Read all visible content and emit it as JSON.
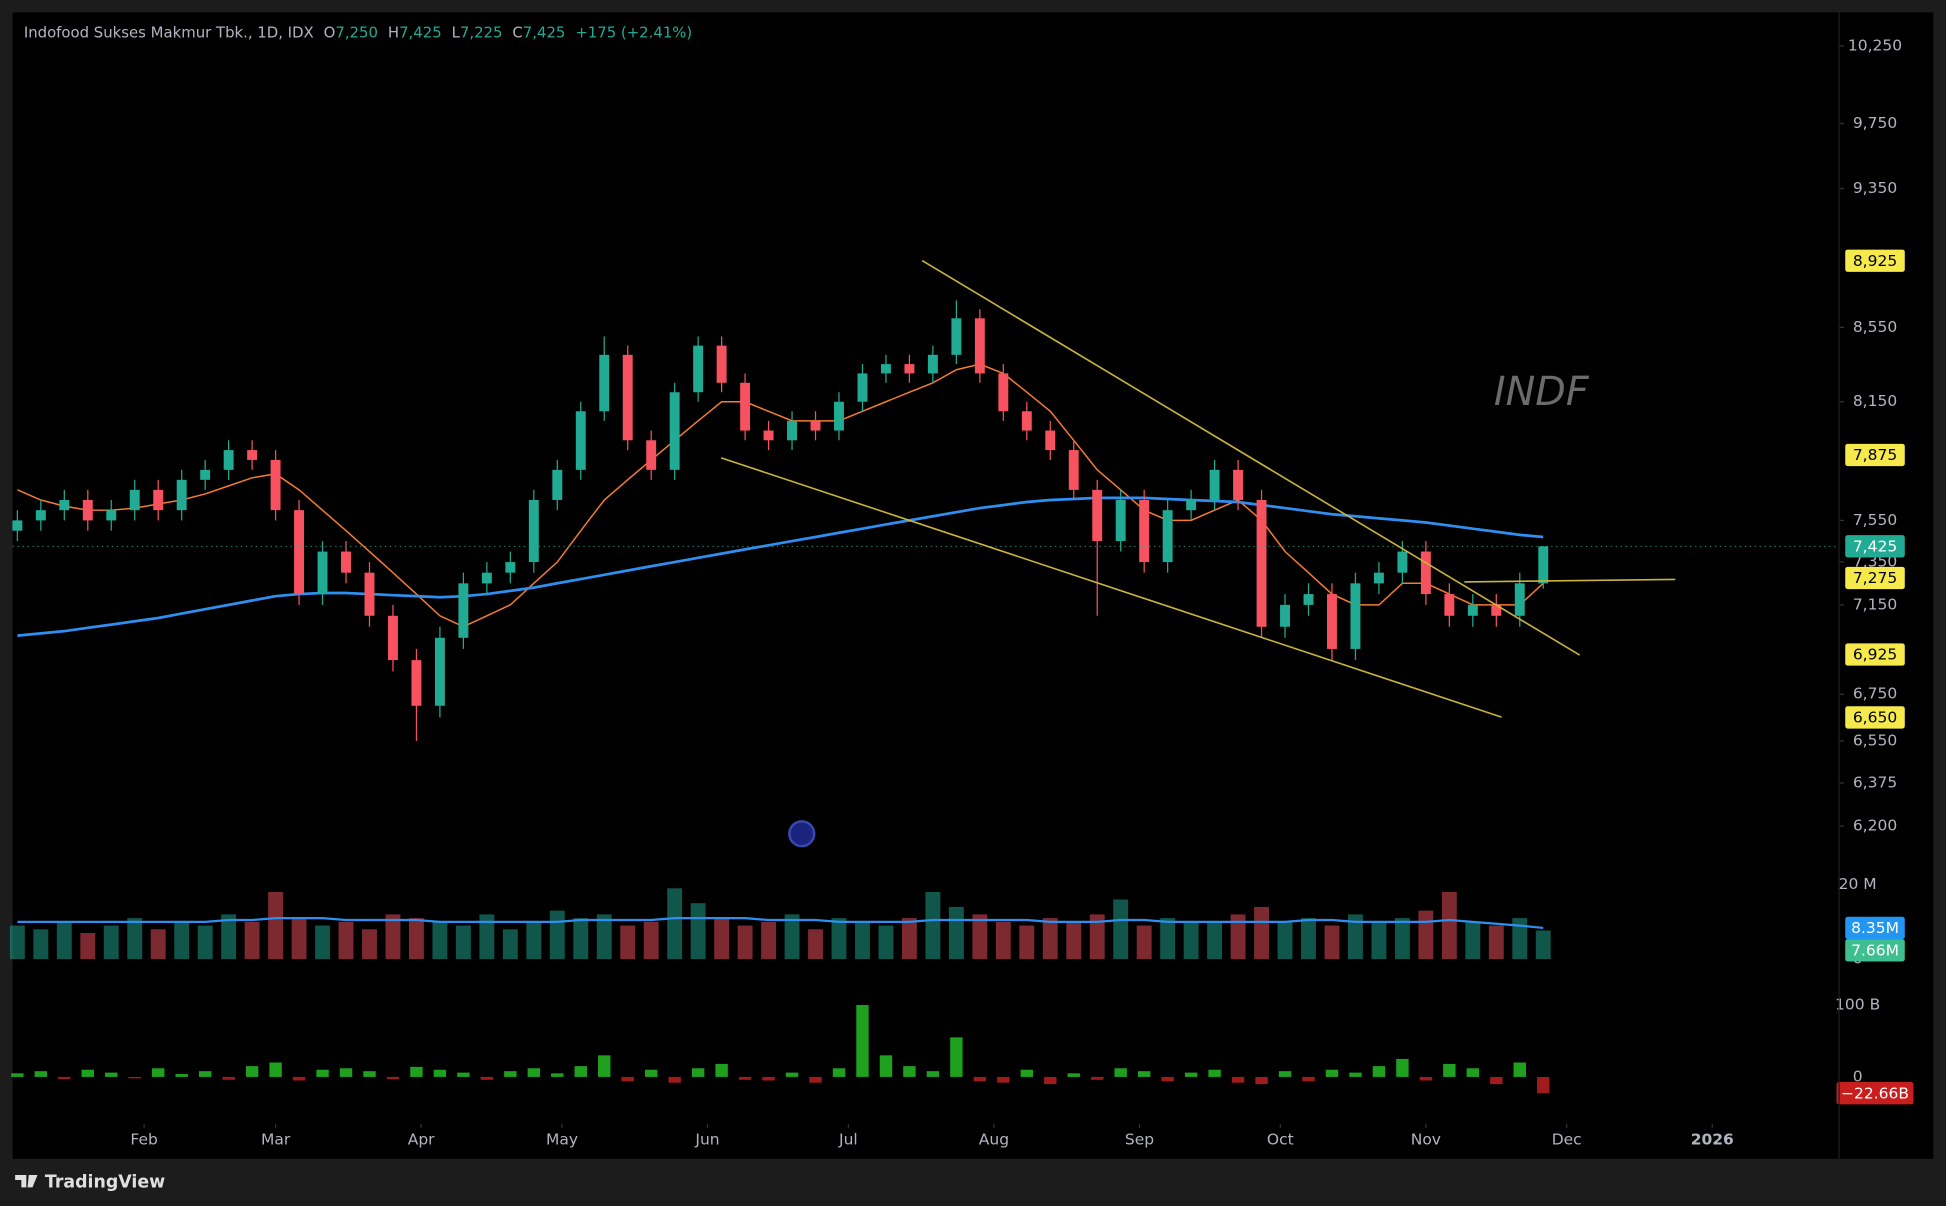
{
  "chart_data": {
    "type": "candlestick",
    "title": "Indofood Sukses Makmur Tbk., 1D, IDX",
    "header": [
      {
        "key": "O",
        "value": "7,250"
      },
      {
        "key": "H",
        "value": "7,425"
      },
      {
        "key": "L",
        "value": "7,225"
      },
      {
        "key": "C",
        "value": "7,425"
      }
    ],
    "change": "+175 (+2.41%)",
    "watermark": "INDF",
    "up_color": "#22ab94",
    "down_color": "#f7525f",
    "x": [
      5,
      10,
      15,
      20,
      25,
      30,
      35,
      40,
      45,
      50,
      55,
      60,
      65,
      70,
      75,
      80,
      85,
      90,
      95,
      100,
      105,
      110,
      115,
      120,
      125,
      130,
      135,
      140,
      145,
      150,
      155,
      160,
      165,
      170,
      175,
      180,
      185,
      190,
      195,
      200,
      205,
      210,
      215,
      220,
      225,
      230,
      235,
      240,
      245,
      250,
      255,
      260,
      265,
      270,
      275,
      280,
      285,
      290,
      295,
      300,
      305,
      310,
      315,
      320,
      325,
      330
    ],
    "open": [
      7500,
      7550,
      7600,
      7650,
      7550,
      7600,
      7700,
      7600,
      7750,
      7800,
      7900,
      7850,
      7600,
      7200,
      7400,
      7300,
      7100,
      6900,
      6700,
      7000,
      7250,
      7300,
      7350,
      7650,
      7800,
      8100,
      8400,
      7950,
      7800,
      8200,
      8450,
      8250,
      8000,
      7950,
      8050,
      8000,
      8150,
      8300,
      8350,
      8300,
      8400,
      8600,
      8300,
      8100,
      8000,
      7900,
      7700,
      7450,
      7650,
      7350,
      7600,
      7650,
      7800,
      7650,
      7050,
      7150,
      7200,
      6950,
      7250,
      7300,
      7400,
      7200,
      7100,
      7150,
      7100,
      7250
    ],
    "high": [
      7600,
      7650,
      7700,
      7700,
      7650,
      7750,
      7750,
      7800,
      7850,
      7950,
      7950,
      7900,
      7650,
      7450,
      7450,
      7350,
      7150,
      6950,
      7050,
      7300,
      7350,
      7400,
      7700,
      7850,
      8150,
      8500,
      8450,
      8000,
      8250,
      8500,
      8500,
      8300,
      8050,
      8100,
      8100,
      8200,
      8350,
      8400,
      8400,
      8450,
      8700,
      8650,
      8350,
      8150,
      8050,
      7950,
      7750,
      7700,
      7700,
      7650,
      7700,
      7850,
      7850,
      7700,
      7200,
      7250,
      7250,
      7300,
      7350,
      7450,
      7450,
      7250,
      7200,
      7200,
      7300,
      7425
    ],
    "low": [
      7450,
      7500,
      7550,
      7500,
      7500,
      7550,
      7550,
      7550,
      7700,
      7750,
      7800,
      7550,
      7150,
      7150,
      7250,
      7050,
      6850,
      6550,
      6650,
      6950,
      7200,
      7250,
      7300,
      7600,
      7750,
      8050,
      7900,
      7750,
      7750,
      8150,
      8200,
      7950,
      7900,
      7900,
      7950,
      7950,
      8100,
      8250,
      8250,
      8250,
      8350,
      8250,
      8050,
      7950,
      7850,
      7650,
      7100,
      7400,
      7300,
      7300,
      7550,
      7600,
      7600,
      7000,
      7000,
      7100,
      6900,
      6900,
      7200,
      7250,
      7150,
      7050,
      7050,
      7050,
      7050,
      7225
    ],
    "close": [
      7550,
      7600,
      7650,
      7550,
      7600,
      7700,
      7600,
      7750,
      7800,
      7900,
      7850,
      7600,
      7200,
      7400,
      7300,
      7100,
      6900,
      6700,
      7000,
      7250,
      7300,
      7350,
      7650,
      7800,
      8100,
      8400,
      7950,
      7800,
      8200,
      8450,
      8250,
      8000,
      7950,
      8050,
      8000,
      8150,
      8300,
      8350,
      8300,
      8400,
      8600,
      8300,
      8100,
      8000,
      7900,
      7700,
      7450,
      7650,
      7350,
      7600,
      7650,
      7800,
      7650,
      7050,
      7150,
      7200,
      6950,
      7250,
      7300,
      7400,
      7200,
      7100,
      7150,
      7100,
      7250,
      7425
    ],
    "overlays": [
      {
        "color": "#f57c30",
        "values": [
          7700,
          7650,
          7620,
          7600,
          7600,
          7610,
          7630,
          7650,
          7680,
          7720,
          7760,
          7780,
          7700,
          7600,
          7500,
          7400,
          7300,
          7200,
          7100,
          7050,
          7100,
          7150,
          7250,
          7350,
          7500,
          7650,
          7750,
          7850,
          7950,
          8050,
          8150,
          8150,
          8100,
          8050,
          8050,
          8050,
          8100,
          8150,
          8200,
          8250,
          8320,
          8350,
          8300,
          8200,
          8100,
          7950,
          7800,
          7700,
          7600,
          7550,
          7550,
          7600,
          7650,
          7550,
          7400,
          7300,
          7200,
          7150,
          7150,
          7250,
          7250,
          7200,
          7150,
          7150,
          7150,
          7250
        ]
      },
      {
        "color": "#2f8ff0",
        "values": [
          7010,
          7020,
          7030,
          7045,
          7060,
          7075,
          7090,
          7110,
          7130,
          7150,
          7170,
          7190,
          7200,
          7205,
          7205,
          7200,
          7195,
          7190,
          7185,
          7190,
          7200,
          7215,
          7230,
          7250,
          7270,
          7290,
          7310,
          7330,
          7350,
          7370,
          7390,
          7410,
          7430,
          7450,
          7470,
          7490,
          7510,
          7530,
          7550,
          7570,
          7590,
          7610,
          7625,
          7640,
          7650,
          7655,
          7660,
          7660,
          7660,
          7655,
          7650,
          7645,
          7640,
          7625,
          7610,
          7595,
          7580,
          7570,
          7560,
          7550,
          7540,
          7525,
          7510,
          7495,
          7480,
          7470
        ]
      }
    ],
    "ylim": [
      6033,
      10457
    ],
    "log_scale": true,
    "yticks": [
      {
        "value": 10250,
        "label": "10,250"
      },
      {
        "value": 9750,
        "label": "9,750"
      },
      {
        "value": 9350,
        "label": "9,350"
      },
      {
        "value": 8550,
        "label": "8,550"
      },
      {
        "value": 8150,
        "label": "8,150"
      },
      {
        "value": 7550,
        "label": "7,550"
      },
      {
        "value": 7350,
        "label": "7,350"
      },
      {
        "value": 7150,
        "label": "7,150"
      },
      {
        "value": 6750,
        "label": "6,750"
      },
      {
        "value": 6550,
        "label": "6,550"
      },
      {
        "value": 6375,
        "label": "6,375"
      },
      {
        "value": 6200,
        "label": "6,200"
      }
    ],
    "price_badges": [
      {
        "value": 8925,
        "label": "8,925",
        "color": "#f5e94c"
      },
      {
        "value": 7875,
        "label": "7,875",
        "color": "#f5e94c"
      },
      {
        "value": 7425,
        "label": "7,425",
        "color": "#22ab94"
      },
      {
        "value": 7275,
        "label": "7,275",
        "color": "#f5e94c"
      },
      {
        "value": 6925,
        "label": "6,925",
        "color": "#f5e94c"
      },
      {
        "value": 6650,
        "label": "6,650",
        "color": "#f5e94c"
      }
    ],
    "xlim": [
      4,
      393
    ],
    "xticks": [
      {
        "value": 32,
        "label": "Feb"
      },
      {
        "value": 60,
        "label": "Mar"
      },
      {
        "value": 91,
        "label": "Apr"
      },
      {
        "value": 121,
        "label": "May"
      },
      {
        "value": 152,
        "label": "Jun"
      },
      {
        "value": 182,
        "label": "Jul"
      },
      {
        "value": 213,
        "label": "Aug"
      },
      {
        "value": 244,
        "label": "Sep"
      },
      {
        "value": 274,
        "label": "Oct"
      },
      {
        "value": 305,
        "label": "Nov"
      },
      {
        "value": 335,
        "label": "Dec"
      },
      {
        "value": 366,
        "label": "2026"
      }
    ],
    "volume": {
      "values": [
        9,
        8,
        10,
        7,
        9,
        11,
        8,
        10,
        9,
        12,
        10,
        18,
        11,
        9,
        10,
        8,
        12,
        11,
        10,
        9,
        12,
        8,
        10,
        13,
        11,
        12,
        9,
        10,
        19,
        15,
        11,
        9,
        10,
        12,
        8,
        11,
        10,
        9,
        11,
        18,
        14,
        12,
        10,
        9,
        11,
        10,
        12,
        16,
        9,
        11,
        10,
        10,
        12,
        14,
        10,
        11,
        9,
        12,
        10,
        11,
        13,
        18,
        10,
        9,
        11,
        7.66
      ],
      "ma": [
        10,
        10,
        10,
        10,
        10,
        10,
        10,
        10,
        10,
        10.5,
        10.5,
        11,
        11,
        11,
        10.5,
        10.5,
        10.5,
        10.5,
        10,
        10,
        10,
        10,
        10,
        10,
        10.5,
        10.5,
        10.5,
        10.5,
        11,
        11,
        11,
        11,
        10.5,
        10.5,
        10.5,
        10,
        10,
        10,
        10,
        10.5,
        10.5,
        10.5,
        10.5,
        10.5,
        10,
        10,
        10,
        10.5,
        10.5,
        10,
        10,
        10,
        10,
        10,
        10,
        10.5,
        10.5,
        10,
        10,
        10,
        10,
        10.5,
        10,
        9.5,
        9,
        8.35
      ],
      "ma_color": "#2f8ff0",
      "ylim": [
        0,
        23.3
      ],
      "yticks": [
        {
          "value": 20,
          "label": "20 M"
        },
        0
      ],
      "badges": [
        {
          "value": 8.35,
          "label": "8.35M",
          "color": "#2196f3"
        },
        {
          "value": 7.66,
          "label": "7.66M",
          "color": "#3fbf8f"
        }
      ]
    },
    "flow": {
      "values": [
        5,
        8,
        -3,
        10,
        6,
        -2,
        12,
        4,
        8,
        -4,
        15,
        20,
        -5,
        10,
        12,
        8,
        -3,
        14,
        10,
        6,
        -4,
        8,
        12,
        5,
        15,
        30,
        -6,
        10,
        -8,
        12,
        18,
        -4,
        -5,
        6,
        -8,
        12,
        100,
        30,
        15,
        8,
        55,
        -6,
        -8,
        10,
        -10,
        5,
        -4,
        12,
        8,
        -6,
        6,
        10,
        -8,
        -10,
        8,
        -6,
        10,
        6,
        15,
        25,
        -5,
        18,
        12,
        -10,
        20,
        -22.66
      ],
      "up_color": "#1fa01f",
      "down_color": "#a01c1c",
      "ylim": [
        -38,
        117.2
      ],
      "yticks": [
        {
          "value": 100,
          "label": "100 B"
        },
        0
      ],
      "badges": [
        {
          "value": -22.66,
          "label": "−22.66B",
          "color": "#c81e1e"
        }
      ]
    }
  },
  "brand": "TradingView"
}
